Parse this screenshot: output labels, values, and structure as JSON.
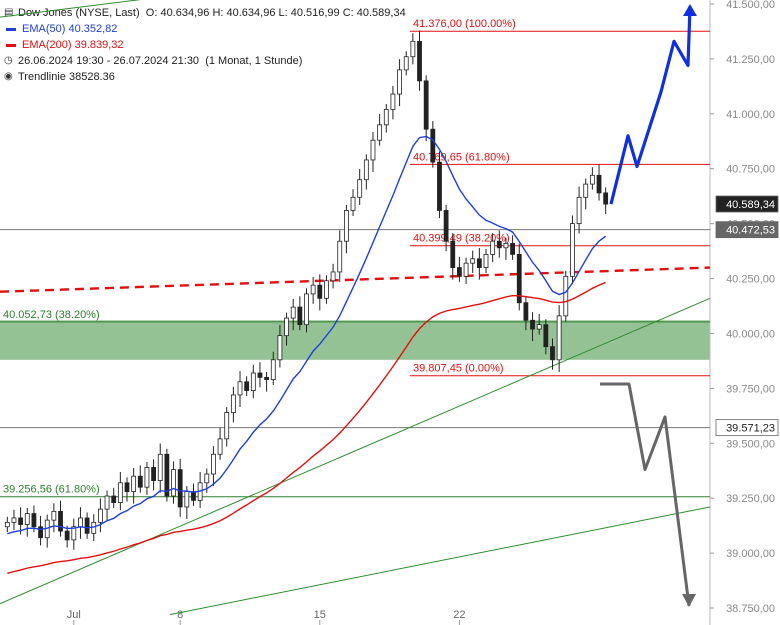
{
  "legend": {
    "title": "Dow Jones (NYSE, Last)",
    "ohlc": "O: 40.634,96   H: 40.634,96   L: 40.516,99   C: 40.589,34",
    "ema50": {
      "label": "EMA(50)",
      "value": "40.352,82",
      "color": "#1f3fdc"
    },
    "ema200": {
      "label": "EMA(200)",
      "value": "39.839,32",
      "color": "#e01010"
    },
    "range": "26.06.2024 19:30 - 26.07.2024 21:30",
    "interval": "(1 Monat, 1 Stunde)",
    "trend_label": "Trendlinie",
    "trend_value": "38528.36"
  },
  "chart_data": {
    "type": "candlestick",
    "ylim": [
      38700,
      41500
    ],
    "y_ticks": [
      {
        "v": 41500,
        "t": "41.500,00"
      },
      {
        "v": 41250,
        "t": "41.250,00"
      },
      {
        "v": 41000,
        "t": "41.000,00"
      },
      {
        "v": 40750,
        "t": "40.750,00"
      },
      {
        "v": 40500,
        "t": "40.500,00"
      },
      {
        "v": 40250,
        "t": "40.250,00"
      },
      {
        "v": 40000,
        "t": "40.000,00"
      },
      {
        "v": 39750,
        "t": "39.750,00"
      },
      {
        "v": 39500,
        "t": "39.500,00"
      },
      {
        "v": 39250,
        "t": "39.250,00"
      },
      {
        "v": 39000,
        "t": "39.000,00"
      },
      {
        "v": 38750,
        "t": "38.750,00"
      }
    ],
    "x_ticks": [
      {
        "i": 10,
        "t": "Jul"
      },
      {
        "i": 26,
        "t": "8"
      },
      {
        "i": 47,
        "t": "15"
      },
      {
        "i": 68,
        "t": "22"
      }
    ],
    "closes": [
      39140,
      39160,
      39130,
      39180,
      39120,
      39070,
      39150,
      39190,
      39100,
      39060,
      39120,
      39160,
      39090,
      39140,
      39200,
      39260,
      39230,
      39320,
      39280,
      39350,
      39300,
      39390,
      39330,
      39450,
      39260,
      39380,
      39210,
      39280,
      39240,
      39320,
      39360,
      39450,
      39520,
      39640,
      39720,
      39780,
      39740,
      39820,
      39800,
      39790,
      39880,
      39990,
      40070,
      40120,
      40040,
      40180,
      40220,
      40160,
      40240,
      40280,
      40420,
      40560,
      40620,
      40700,
      40790,
      40880,
      40950,
      41020,
      41090,
      41200,
      41260,
      41330,
      41150,
      40930,
      40780,
      40560,
      40420,
      40300,
      40260,
      40320,
      40340,
      40300,
      40360,
      40420,
      40390,
      40410,
      40360,
      40140,
      40060,
      40020,
      40040,
      39940,
      39880,
      40080,
      40260,
      40500,
      40620,
      40680,
      40720,
      40640,
      40589
    ],
    "price_labels": [
      {
        "v": 40589.34,
        "t": "40.589,34",
        "style": "dark"
      },
      {
        "v": 40472.53,
        "t": "40.472,53",
        "style": "gray"
      },
      {
        "v": 39571.23,
        "t": "39.571,23",
        "style": "white"
      }
    ],
    "fib_levels": [
      {
        "v": 41376.0,
        "t": "41.376,00 (100.00%)",
        "color": "#e01010"
      },
      {
        "v": 40769.65,
        "t": "40.769,65 (61.80%)",
        "color": "#e01010"
      },
      {
        "v": 40399.49,
        "t": "40.399,49 (38.20%)",
        "color": "#e01010"
      },
      {
        "v": 39807.45,
        "t": "39.807,45 (0.00%)",
        "color": "#e01010"
      },
      {
        "v": 40052.73,
        "t": "40.052,73 (38.20%)",
        "color": "#2e7d2e"
      },
      {
        "v": 39256.56,
        "t": "39.256,56 (61.80%)",
        "color": "#2e7d2e"
      }
    ],
    "support_zone": [
      39880,
      40060
    ],
    "horizontal_lines": [
      40472.53,
      39571.23
    ],
    "dashed_trend_value": 38528.36,
    "scenario_up": [
      40589,
      40900,
      40760,
      41100,
      41330,
      41220,
      41490
    ],
    "scenario_down": [
      39770,
      39770,
      39380,
      39620,
      38760
    ]
  }
}
